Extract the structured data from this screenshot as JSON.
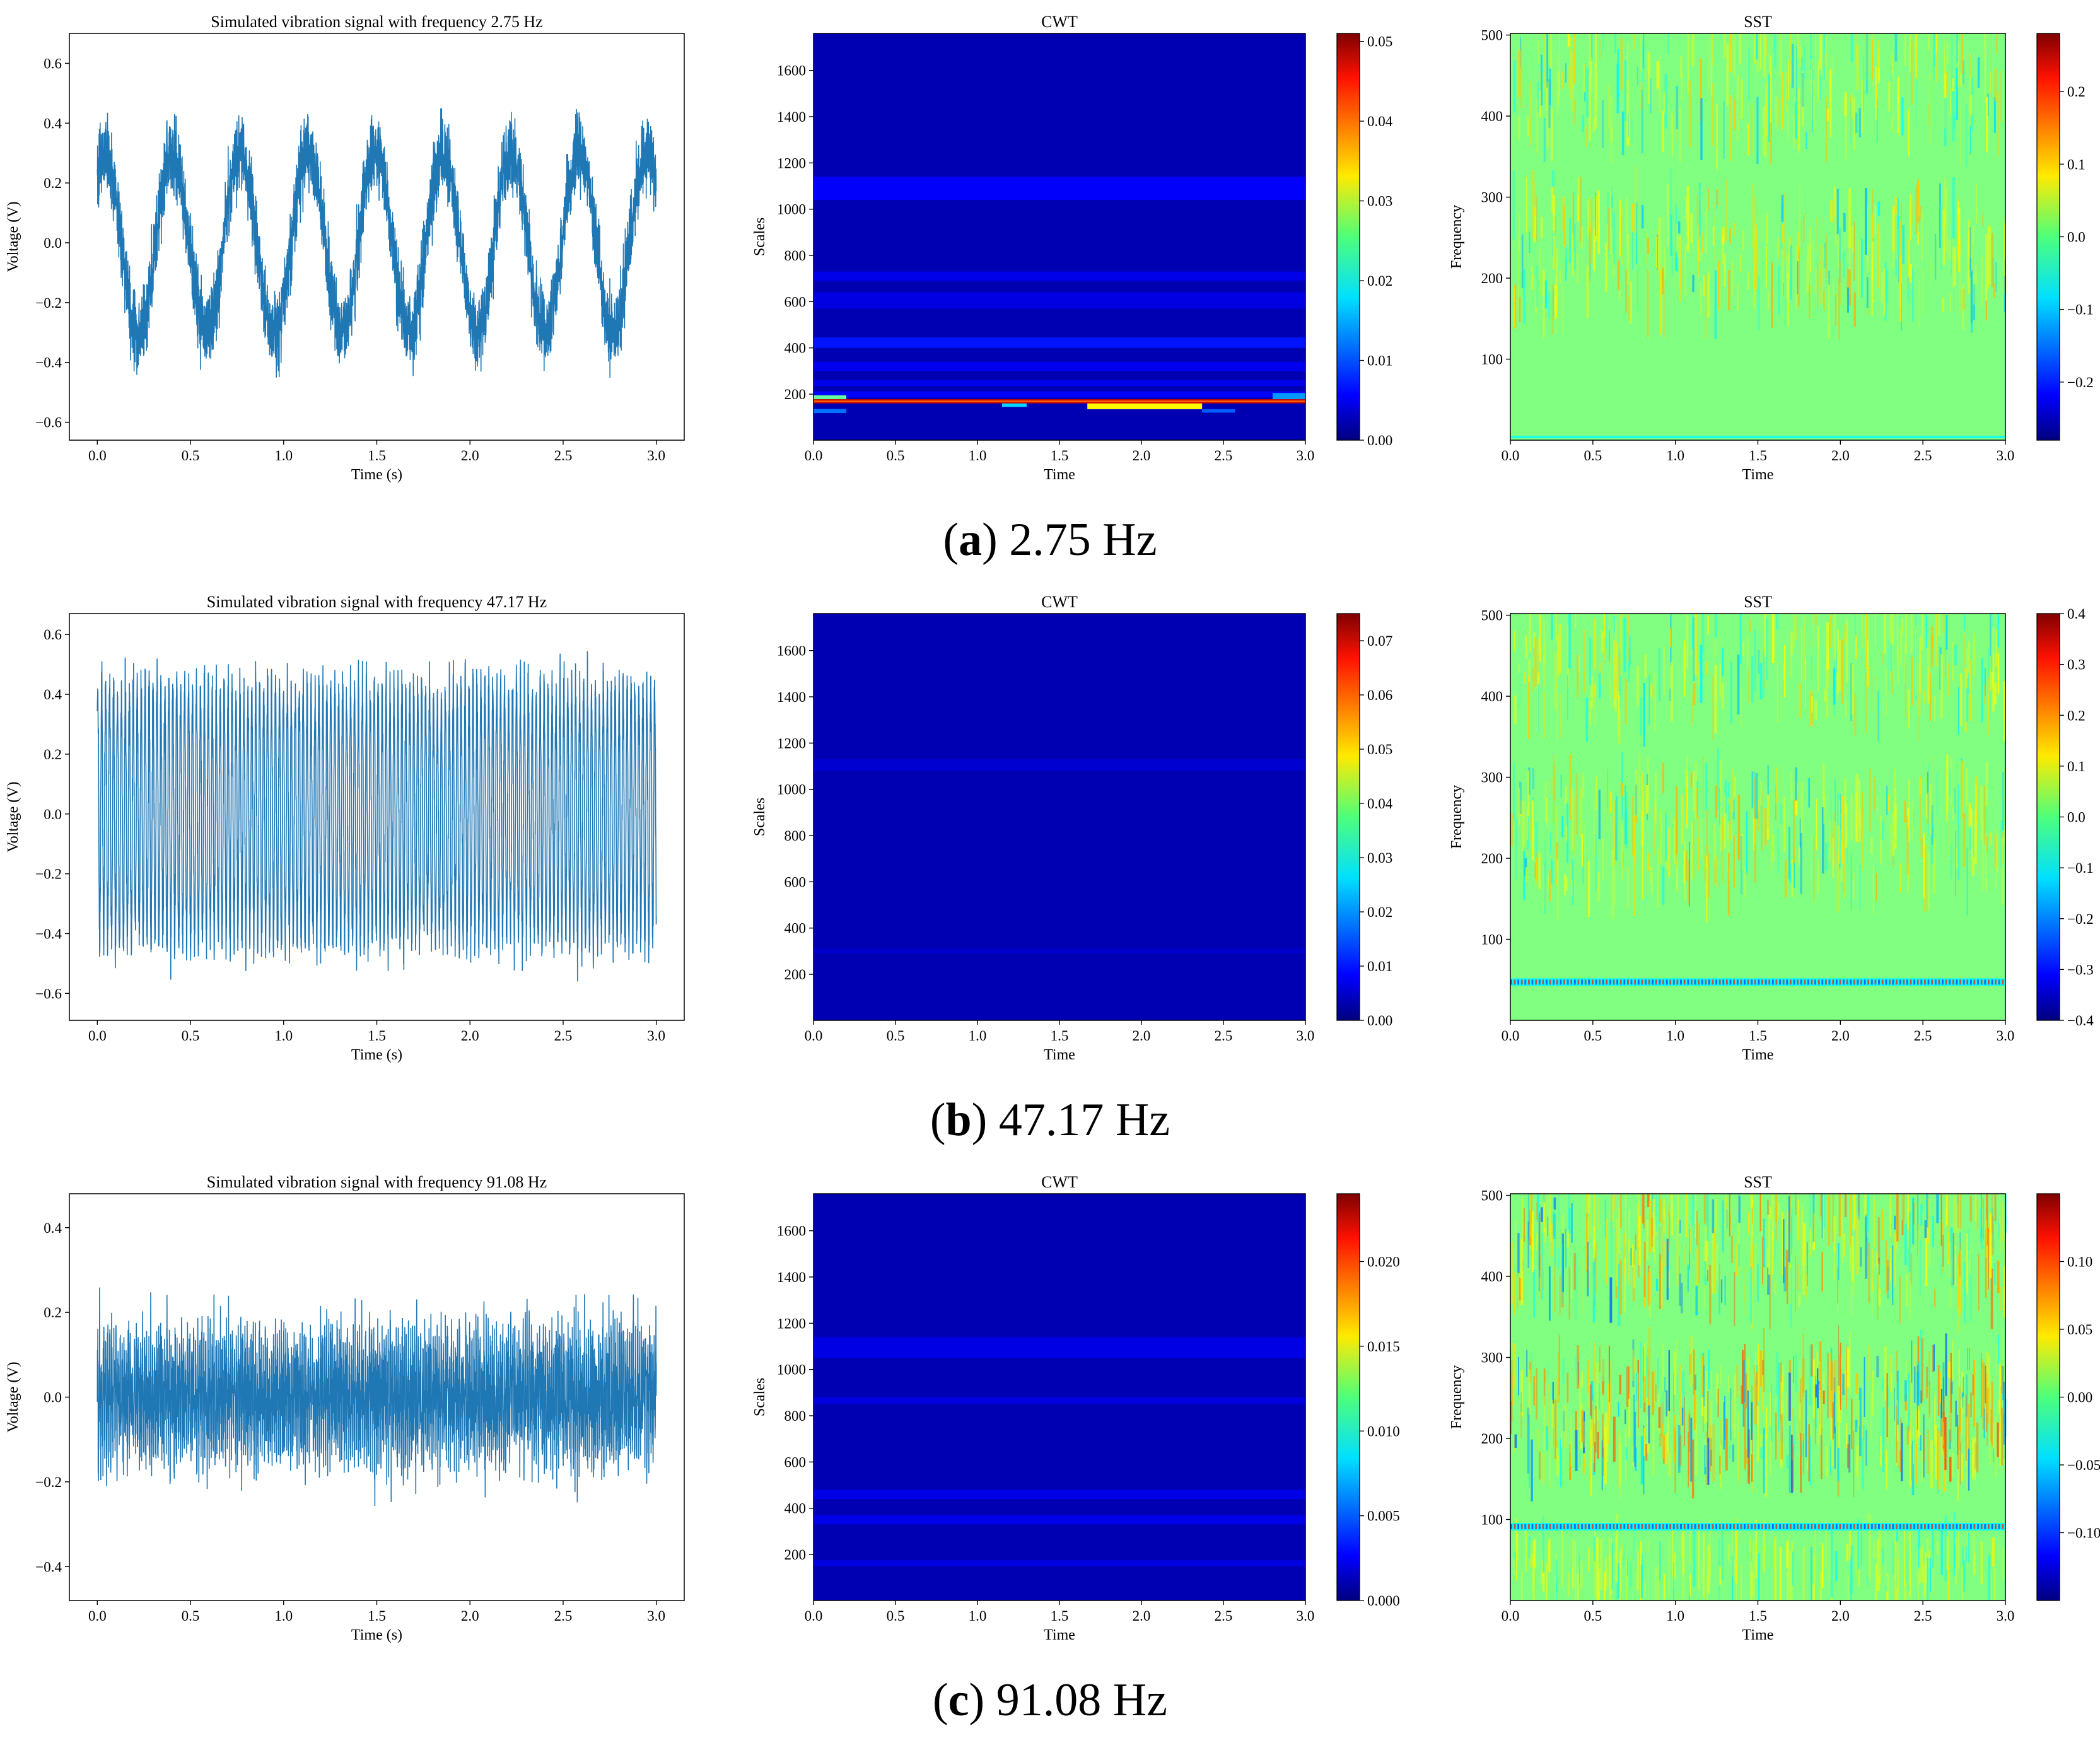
{
  "figure": {
    "rows": [
      {
        "caption": {
          "letter": "a",
          "text": "2.75 Hz"
        },
        "panels": [
          {
            "type": "line",
            "color": "#1f77b4",
            "title": "Simulated vibration signal with frequency 2.75 Hz",
            "xlabel": "Time (s)",
            "ylabel": "Voltage (V)",
            "xlim": [
              -0.15,
              3.15
            ],
            "ylim": [
              -0.66,
              0.7
            ],
            "xticks": [
              "0.0",
              "0.5",
              "1.0",
              "1.5",
              "2.0",
              "2.5",
              "3.0"
            ],
            "yticks": [
              "0.6",
              "0.4",
              "0.2",
              "0.0",
              "−0.2",
              "−0.4",
              "−0.6"
            ],
            "signal": {
              "frequency_hz": 2.75,
              "amplitude_v": 0.3,
              "noise_v": 0.09,
              "duration_s": 3.0
            }
          },
          {
            "type": "heatmap",
            "colormap": "jet",
            "title": "CWT",
            "xlabel": "Time",
            "ylabel": "Scales",
            "xlim": [
              0,
              3.0
            ],
            "ylim": [
              1,
              1760
            ],
            "xticks": [
              "0.0",
              "0.5",
              "1.0",
              "1.5",
              "2.0",
              "2.5",
              "3.0"
            ],
            "yticks": [
              "1600",
              "1400",
              "1200",
              "1000",
              "800",
              "600",
              "400",
              "200"
            ],
            "colorbar": {
              "min": 0,
              "max": 0.051,
              "ticks": [
                "0.05",
                "0.04",
                "0.03",
                "0.02",
                "0.01",
                "0.00"
              ]
            },
            "bands": [
              {
                "y": [
                  1040,
                  1140
                ],
                "value": 0.0032
              },
              {
                "y": [
                  690,
                  730
                ],
                "value": 0.0022
              },
              {
                "y": [
                  570,
                  640
                ],
                "value": 0.0018
              },
              {
                "y": [
                  400,
                  445
                ],
                "value": 0.0045
              },
              {
                "y": [
                  300,
                  340
                ],
                "value": 0.0025
              },
              {
                "y": [
                  235,
                  260
                ],
                "value": 0.0022
              },
              {
                "y": [
                  186,
                  212
                ],
                "value": 0.0035
              }
            ],
            "ridge": {
              "y": [
                160,
                178
              ],
              "value": 0.051
            },
            "patches": [
              {
                "x": [
                  0,
                  0.2
                ],
                "y": [
                  172,
                  195
                ],
                "value": 0.024
              },
              {
                "x": [
                  1.15,
                  1.3
                ],
                "y": [
                  145,
                  170
                ],
                "value": 0.017
              },
              {
                "x": [
                  1.67,
                  2.37
                ],
                "y": [
                  135,
                  172
                ],
                "value": 0.032
              },
              {
                "x": [
                  2.8,
                  3.0
                ],
                "y": [
                  172,
                  205
                ],
                "value": 0.014
              },
              {
                "x": [
                  0,
                  0.2
                ],
                "y": [
                  118,
                  136
                ],
                "value": 0.012
              },
              {
                "x": [
                  2.37,
                  2.57
                ],
                "y": [
                  120,
                  135
                ],
                "value": 0.011
              }
            ]
          },
          {
            "type": "heatmap",
            "colormap": "jet",
            "title": "SST",
            "xlabel": "Time",
            "ylabel": "Frequency",
            "xlim": [
              0,
              3.0
            ],
            "ylim": [
              0,
              502
            ],
            "xticks": [
              "0.0",
              "0.5",
              "1.0",
              "1.5",
              "2.0",
              "2.5",
              "3.0"
            ],
            "yticks": [
              "500",
              "400",
              "300",
              "200",
              "100"
            ],
            "colorbar": {
              "min": -0.28,
              "max": 0.28,
              "ticks": [
                "0.2",
                "0.1",
                "0.0",
                "−0.1",
                "−0.2"
              ]
            },
            "ridge": null
          }
        ]
      },
      {
        "caption": {
          "letter": "b",
          "text": "47.17 Hz"
        },
        "panels": [
          {
            "type": "line",
            "color": "#1f77b4",
            "title": "Simulated vibration signal with frequency 47.17 Hz",
            "xlabel": "Time (s)",
            "ylabel": "Voltage (V)",
            "xlim": [
              -0.15,
              3.15
            ],
            "ylim": [
              -0.69,
              0.67
            ],
            "xticks": [
              "0.0",
              "0.5",
              "1.0",
              "1.5",
              "2.0",
              "2.5",
              "3.0"
            ],
            "yticks": [
              "0.6",
              "0.4",
              "0.2",
              "0.0",
              "−0.2",
              "−0.4",
              "−0.6"
            ],
            "signal": {
              "frequency_hz": 47.17,
              "amplitude_v": 0.42,
              "noise_v": 0.07,
              "duration_s": 3.0
            }
          },
          {
            "type": "heatmap",
            "colormap": "jet",
            "title": "CWT",
            "xlabel": "Time",
            "ylabel": "Scales",
            "xlim": [
              0,
              3.0
            ],
            "ylim": [
              1,
              1760
            ],
            "xticks": [
              "0.0",
              "0.5",
              "1.0",
              "1.5",
              "2.0",
              "2.5",
              "3.0"
            ],
            "yticks": [
              "1600",
              "1400",
              "1200",
              "1000",
              "800",
              "600",
              "400",
              "200"
            ],
            "colorbar": {
              "min": 0,
              "max": 0.075,
              "ticks": [
                "0.07",
                "0.06",
                "0.05",
                "0.04",
                "0.03",
                "0.02",
                "0.01",
                "0.00"
              ]
            },
            "bands": [
              {
                "y": [
                  1080,
                  1130
                ],
                "value": 0.0012
              },
              {
                "y": [
                  290,
                  310
                ],
                "value": 0.001
              }
            ],
            "ridge": null,
            "patches": []
          },
          {
            "type": "heatmap",
            "colormap": "jet",
            "title": "SST",
            "xlabel": "Time",
            "ylabel": "Frequency",
            "xlim": [
              0,
              3.0
            ],
            "ylim": [
              0,
              502
            ],
            "xticks": [
              "0.0",
              "0.5",
              "1.0",
              "1.5",
              "2.0",
              "2.5",
              "3.0"
            ],
            "yticks": [
              "500",
              "400",
              "300",
              "200",
              "100"
            ],
            "colorbar": {
              "min": -0.4,
              "max": 0.4,
              "ticks": [
                "0.4",
                "0.3",
                "0.2",
                "0.1",
                "0.0",
                "−0.1",
                "−0.2",
                "−0.3",
                "−0.4"
              ]
            },
            "ridge": {
              "frequency_hz": 47.17
            }
          }
        ]
      },
      {
        "caption": {
          "letter": "c",
          "text": "91.08 Hz"
        },
        "panels": [
          {
            "type": "line",
            "color": "#1f77b4",
            "title": "Simulated vibration signal with frequency 91.08 Hz",
            "xlabel": "Time (s)",
            "ylabel": "Voltage (V)",
            "xlim": [
              -0.15,
              3.15
            ],
            "ylim": [
              -0.48,
              0.48
            ],
            "xticks": [
              "0.0",
              "0.5",
              "1.0",
              "1.5",
              "2.0",
              "2.5",
              "3.0"
            ],
            "yticks": [
              "0.4",
              "0.2",
              "0.0",
              "−0.2",
              "−0.4"
            ],
            "signal": {
              "frequency_hz": 91.08,
              "amplitude_v": 0.09,
              "noise_v": 0.09,
              "duration_s": 3.0
            }
          },
          {
            "type": "heatmap",
            "colormap": "jet",
            "title": "CWT",
            "xlabel": "Time",
            "ylabel": "Scales",
            "xlim": [
              0,
              3.0
            ],
            "ylim": [
              1,
              1760
            ],
            "xticks": [
              "0.0",
              "0.5",
              "1.0",
              "1.5",
              "2.0",
              "2.5",
              "3.0"
            ],
            "yticks": [
              "1600",
              "1400",
              "1200",
              "1000",
              "800",
              "600",
              "400",
              "200"
            ],
            "colorbar": {
              "min": 0,
              "max": 0.024,
              "ticks": [
                "0.020",
                "0.015",
                "0.010",
                "0.005",
                "0.000"
              ]
            },
            "bands": [
              {
                "y": [
                  1050,
                  1140
                ],
                "value": 0.0009
              },
              {
                "y": [
                  850,
                  880
                ],
                "value": 0.0008
              },
              {
                "y": [
                  440,
                  480
                ],
                "value": 0.0009
              },
              {
                "y": [
                  330,
                  370
                ],
                "value": 0.001
              },
              {
                "y": [
                  150,
                  175
                ],
                "value": 0.0008
              }
            ],
            "ridge": null,
            "patches": []
          },
          {
            "type": "heatmap",
            "colormap": "jet",
            "title": "SST",
            "xlabel": "Time",
            "ylabel": "Frequency",
            "xlim": [
              0,
              3.0
            ],
            "ylim": [
              0,
              502
            ],
            "xticks": [
              "0.0",
              "0.5",
              "1.0",
              "1.5",
              "2.0",
              "2.5",
              "3.0"
            ],
            "yticks": [
              "500",
              "400",
              "300",
              "200",
              "100"
            ],
            "colorbar": {
              "min": -0.15,
              "max": 0.15,
              "ticks": [
                "0.10",
                "0.05",
                "0.00",
                "−0.05",
                "−0.10"
              ]
            },
            "ridge": {
              "frequency_hz": 91.08
            }
          }
        ]
      }
    ]
  }
}
